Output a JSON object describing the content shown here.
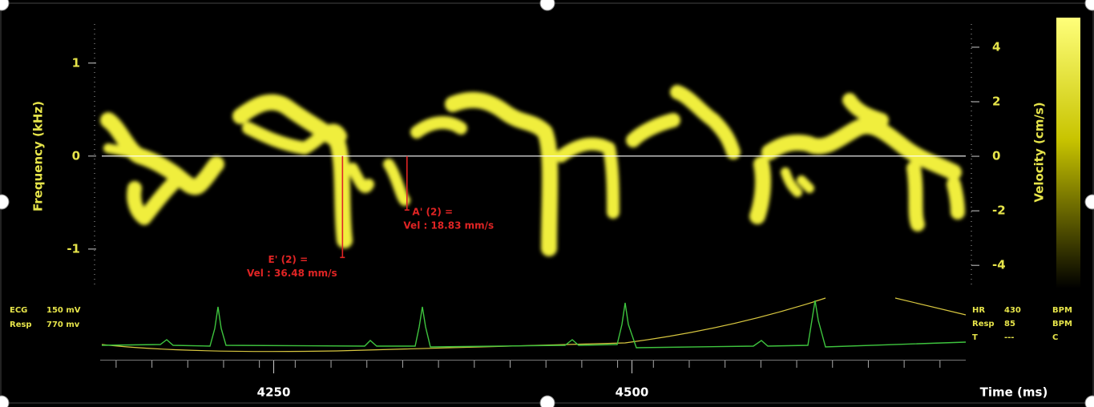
{
  "spectrogram": {
    "frequency_axis": {
      "label": "Frequency (kHz)",
      "ylim": [
        -1.38,
        1.42
      ],
      "yticks": [
        1,
        0,
        -1
      ]
    },
    "velocity_axis": {
      "label": "Velocity (cm/s)",
      "ylim": [
        -4.7,
        4.85
      ],
      "yticks": [
        4,
        2,
        0,
        -2,
        -4
      ]
    },
    "time_axis": {
      "label": "Time (ms)",
      "xlim": [
        4130,
        4733
      ],
      "xticks": [
        4250,
        4500
      ],
      "minor_xticks": [
        4140,
        4165,
        4190,
        4215,
        4240,
        4265,
        4290,
        4315,
        4340,
        4365,
        4390,
        4415,
        4440,
        4465,
        4490,
        4515,
        4540,
        4565,
        4590,
        4615,
        4640,
        4665,
        4690,
        4715
      ]
    },
    "markers": [
      {
        "time": 4298,
        "frequency": -1.09,
        "label": "E' (2) =",
        "value_label": "Vel : 36.48 mm/s"
      },
      {
        "time": 4343,
        "frequency": -0.58,
        "label": "A' (2) =",
        "value_label": "Vel : 18.83 mm/s"
      }
    ]
  },
  "physio": {
    "left": [
      {
        "name": "ECG",
        "value": "150 mV"
      },
      {
        "name": "Resp",
        "value": "770 mv"
      }
    ],
    "right": [
      {
        "name": "HR",
        "value": "430",
        "unit": "BPM"
      },
      {
        "name": "Resp",
        "value": "85",
        "unit": "BPM"
      },
      {
        "name": "T",
        "value": "---",
        "unit": "C"
      }
    ]
  }
}
